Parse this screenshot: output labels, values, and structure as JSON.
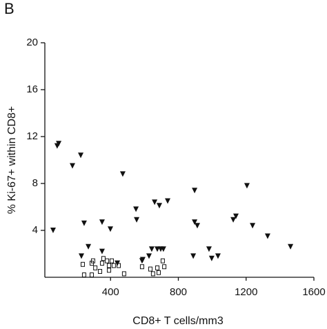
{
  "chart_data": {
    "type": "scatter",
    "panel_label": "B",
    "xlabel": "CD8+ T cells/mm3",
    "ylabel": "% Ki-67+ within CD8+",
    "xlim": [
      0,
      1600
    ],
    "ylim": [
      0,
      20
    ],
    "xticks": [
      400,
      800,
      1200,
      1600
    ],
    "yticks": [
      4,
      8,
      12,
      16,
      20
    ],
    "grid": false,
    "series": [
      {
        "color": "#111111",
        "marker": "triangle-down",
        "x": [
          61,
          85,
          94,
          175,
          224,
          244,
          228,
          269,
          350,
          399,
          350,
          472,
          440,
          550,
          554,
          590,
          643,
          660,
          688,
          737,
          676,
          696,
          712,
          627,
          586,
          896,
          896,
          912,
          888,
          981,
          997,
          1034,
          1124,
          1140,
          1205,
          1238,
          1327,
          1462
        ],
        "values": [
          4.0,
          11.2,
          11.4,
          9.5,
          10.4,
          4.6,
          1.8,
          2.6,
          4.7,
          4.1,
          2.2,
          8.8,
          1.2,
          5.8,
          4.9,
          1.5,
          2.4,
          6.4,
          6.1,
          6.5,
          2.4,
          2.4,
          2.4,
          1.8,
          1.4,
          7.4,
          4.7,
          4.4,
          1.8,
          2.4,
          1.6,
          1.8,
          4.9,
          5.2,
          7.8,
          4.4,
          3.5,
          2.6
        ]
      },
      {
        "color": "#111111",
        "marker": "square-open",
        "x": [
          236,
          244,
          289,
          289,
          297,
          310,
          350,
          358,
          379,
          391,
          407,
          419,
          448,
          480,
          391,
          338,
          586,
          635,
          651,
          676,
          684,
          708,
          717
        ],
        "values": [
          1.1,
          0.2,
          1.2,
          0.2,
          1.4,
          0.8,
          1.2,
          1.6,
          1.4,
          1.0,
          1.4,
          1.0,
          1.0,
          0.3,
          0.6,
          0.5,
          0.9,
          0.7,
          0.3,
          0.8,
          0.4,
          1.4,
          0.9
        ]
      }
    ]
  }
}
